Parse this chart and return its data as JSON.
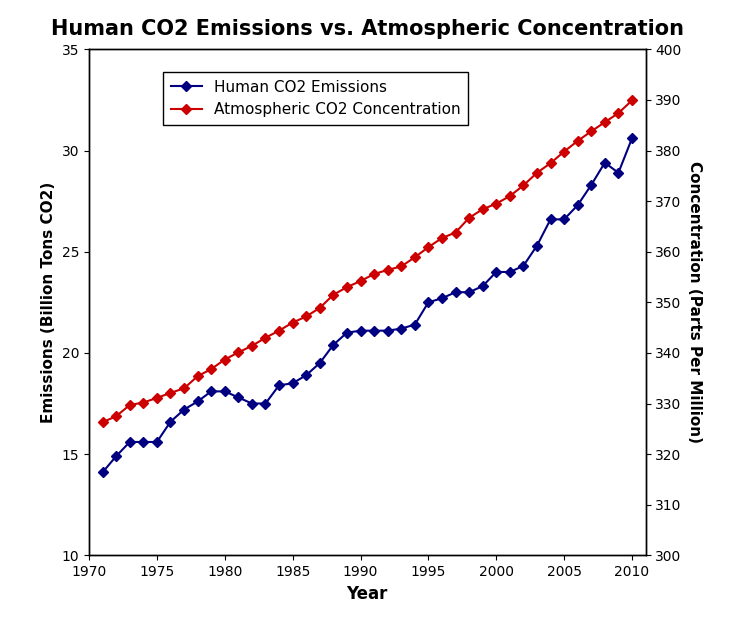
{
  "title": "Human CO2 Emissions vs. Atmospheric Concentration",
  "xlabel": "Year",
  "ylabel_left": "Emissions (Billion Tons CO2)",
  "ylabel_right": "Concentration (Parts Per Million)",
  "ylim_left": [
    10,
    35
  ],
  "ylim_right": [
    300,
    400
  ],
  "yticks_left": [
    10,
    15,
    20,
    25,
    30,
    35
  ],
  "yticks_right": [
    300,
    310,
    320,
    330,
    340,
    350,
    360,
    370,
    380,
    390,
    400
  ],
  "years": [
    1971,
    1972,
    1973,
    1974,
    1975,
    1976,
    1977,
    1978,
    1979,
    1980,
    1981,
    1982,
    1983,
    1984,
    1985,
    1986,
    1987,
    1988,
    1989,
    1990,
    1991,
    1992,
    1993,
    1994,
    1995,
    1996,
    1997,
    1998,
    1999,
    2000,
    2001,
    2002,
    2003,
    2004,
    2005,
    2006,
    2007,
    2008,
    2009,
    2010
  ],
  "emissions": [
    14.1,
    14.9,
    15.6,
    15.6,
    15.6,
    16.6,
    17.2,
    17.6,
    18.1,
    18.1,
    17.8,
    17.5,
    17.5,
    18.4,
    18.5,
    18.9,
    19.5,
    20.4,
    21.0,
    21.1,
    21.1,
    21.1,
    21.2,
    21.4,
    22.5,
    22.7,
    23.0,
    23.0,
    23.3,
    24.0,
    24.0,
    24.3,
    25.3,
    26.6,
    26.6,
    27.3,
    28.3,
    29.4,
    28.9,
    30.6
  ],
  "concentration": [
    326.3,
    327.5,
    329.7,
    330.2,
    331.1,
    332.1,
    333.0,
    335.4,
    336.8,
    338.7,
    340.1,
    341.4,
    343.0,
    344.4,
    346.0,
    347.2,
    348.9,
    351.5,
    353.0,
    354.2,
    355.6,
    356.4,
    357.1,
    358.9,
    360.9,
    362.7,
    363.8,
    366.7,
    368.4,
    369.5,
    371.0,
    373.1,
    375.6,
    377.5,
    379.8,
    381.9,
    383.8,
    385.6,
    387.4,
    389.9
  ],
  "emission_color": "#000080",
  "concentration_color": "#cc0000",
  "text_color": "#1a1a8c",
  "marker": "D",
  "markersize": 5,
  "linewidth": 1.5,
  "legend_emission": "Human CO2 Emissions",
  "legend_concentration": "Atmospheric CO2 Concentration",
  "xticks": [
    1970,
    1975,
    1980,
    1985,
    1990,
    1995,
    2000,
    2005,
    2010
  ],
  "xlim": [
    1970,
    2011
  ]
}
